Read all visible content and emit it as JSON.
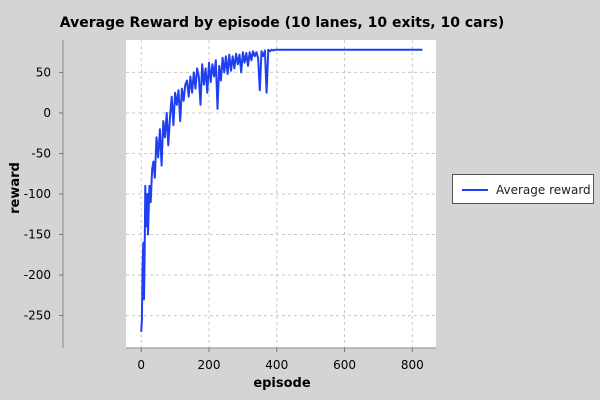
{
  "chart_data": {
    "type": "line",
    "title": "Average Reward by episode (10 lanes, 10 exits, 10 cars)",
    "xlabel": "episode",
    "ylabel": "reward",
    "xlim": [
      -45,
      870
    ],
    "ylim": [
      -290,
      90
    ],
    "xticks": [
      0,
      200,
      400,
      600,
      800
    ],
    "yticks": [
      -250,
      -200,
      -150,
      -100,
      -50,
      0,
      50
    ],
    "grid": true,
    "legend_position": "right",
    "series": [
      {
        "name": "Average reward",
        "color": "#1f3ff0",
        "x": [
          0,
          2,
          4,
          6,
          8,
          10,
          12,
          14,
          16,
          18,
          20,
          24,
          28,
          32,
          36,
          40,
          45,
          50,
          55,
          60,
          65,
          70,
          75,
          80,
          85,
          90,
          95,
          100,
          105,
          110,
          115,
          120,
          125,
          130,
          135,
          140,
          145,
          150,
          155,
          160,
          165,
          170,
          175,
          180,
          185,
          190,
          195,
          200,
          205,
          210,
          215,
          220,
          225,
          230,
          235,
          240,
          245,
          250,
          255,
          260,
          265,
          270,
          275,
          280,
          285,
          290,
          295,
          300,
          305,
          310,
          315,
          320,
          325,
          330,
          335,
          340,
          345,
          350,
          355,
          360,
          365,
          370,
          375,
          380,
          385,
          390,
          395,
          400,
          420,
          500,
          600,
          700,
          800,
          830
        ],
        "y": [
          -270,
          -255,
          -190,
          -160,
          -230,
          -180,
          -90,
          -140,
          -120,
          -100,
          -150,
          -90,
          -110,
          -70,
          -60,
          -80,
          -30,
          -55,
          -20,
          -65,
          -10,
          -30,
          0,
          -40,
          -5,
          20,
          -15,
          25,
          10,
          28,
          -10,
          30,
          15,
          35,
          40,
          20,
          45,
          25,
          50,
          30,
          55,
          45,
          10,
          60,
          35,
          55,
          25,
          62,
          38,
          60,
          45,
          65,
          5,
          58,
          40,
          68,
          50,
          70,
          48,
          72,
          52,
          70,
          55,
          73,
          60,
          72,
          50,
          75,
          62,
          74,
          58,
          75,
          65,
          76,
          70,
          75,
          68,
          28,
          76,
          70,
          77,
          25,
          78,
          76,
          78,
          77,
          78,
          78,
          78,
          78,
          78,
          78,
          78,
          78
        ]
      }
    ]
  }
}
